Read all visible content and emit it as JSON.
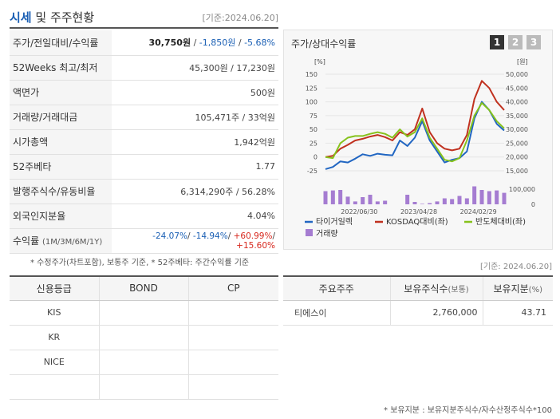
{
  "header": {
    "title_blue": "시세",
    "title_rest": " 및 주주현황",
    "std_time": "[기준:2024.06.20]"
  },
  "info": {
    "row1_label": "주가/전일대비/수익률",
    "price": "30,750원",
    "sep1": " / ",
    "change": "-1,850원",
    "sep2": " / ",
    "rate": "-5.68%",
    "row2_label": "52Weeks 최고/최저",
    "row2_value": "45,300원 / 17,230원",
    "row3_label": "액면가",
    "row3_value": "500원",
    "row4_label": "거래량/거래대금",
    "row4_value": "105,471주 / 33억원",
    "row5_label": "시가총액",
    "row5_value": "1,942억원",
    "row6_label": "52주베타",
    "row6_value": "1.77",
    "row7_label": "발행주식수/유동비율",
    "row7_value": "6,314,290주 / 56.28%",
    "row8_label": "외국인지분율",
    "row8_value": "4.04%",
    "row9_label": "수익률",
    "row9_period": "(1M/3M/6M/1Y)",
    "r1m": "-24.07%",
    "r3m": "-14.94%",
    "r6m": "+60.99%",
    "r1y": "+15.60%",
    "slash": "/ "
  },
  "footnote1": "* 수정주가(차트포함), 보통주 기준, * 52주베타: 주간수익률 기준",
  "chart_panel": {
    "title": "주가/상대수익률",
    "tabs": [
      "1",
      "2",
      "3"
    ],
    "active_tab": "1"
  },
  "chart_data": {
    "type": "line",
    "left_unit": "[%]",
    "right_unit": "[원]",
    "left_ticks": [
      "150",
      "125",
      "100",
      "75",
      "50",
      "25",
      "0",
      "-25"
    ],
    "right_ticks": [
      "50,000",
      "45,000",
      "40,000",
      "35,000",
      "30,000",
      "25,000",
      "20,000",
      "15,000"
    ],
    "volume_ticks": [
      "100,000",
      "0"
    ],
    "x_labels": [
      "2022/06/30",
      "2023/04/28",
      "2024/02/29"
    ],
    "ylim_left": [
      -25,
      150
    ],
    "series": [
      {
        "name": "타이거일렉",
        "color": "#2166c2",
        "values": [
          -22,
          -18,
          -8,
          -10,
          -3,
          5,
          2,
          6,
          4,
          3,
          30,
          20,
          35,
          65,
          30,
          10,
          -10,
          -5,
          -2,
          10,
          70,
          100,
          85,
          60,
          48
        ]
      },
      {
        "name": "KOSDAQ대비(좌)",
        "color": "#c0311f",
        "values": [
          0,
          2,
          15,
          22,
          30,
          33,
          37,
          40,
          36,
          30,
          45,
          40,
          50,
          88,
          45,
          25,
          15,
          12,
          15,
          40,
          105,
          138,
          125,
          100,
          85
        ]
      },
      {
        "name": "반도체대비(좌)",
        "color": "#86c21c",
        "values": [
          0,
          -2,
          25,
          35,
          38,
          38,
          42,
          45,
          42,
          35,
          50,
          37,
          45,
          70,
          35,
          15,
          -5,
          -8,
          -2,
          30,
          75,
          98,
          85,
          65,
          52
        ]
      }
    ],
    "volume_name": "거래량",
    "volume_color": "#a57cd1",
    "volume_values": [
      55000,
      58000,
      60000,
      32000,
      12000,
      30000,
      40000,
      12000,
      15000,
      0,
      0,
      40000,
      10000,
      2000,
      5000,
      12000,
      25000,
      22000,
      35000,
      25000,
      75000,
      60000,
      55000,
      58000,
      48000
    ]
  },
  "std_time2": "[기준: 2024.06.20]",
  "credit": {
    "headers": [
      "신용등급",
      "BOND",
      "CP"
    ],
    "rows": [
      [
        "KIS",
        "",
        ""
      ],
      [
        "KR",
        "",
        ""
      ],
      [
        "NICE",
        "",
        ""
      ],
      [
        "",
        "",
        ""
      ]
    ]
  },
  "holders": {
    "h1": "주요주주",
    "h2": "보유주식수",
    "h2_unit": "(보통)",
    "h3": "보유지분",
    "h3_unit": "(%)",
    "rows": [
      [
        "티에스이",
        "2,760,000",
        "43.71"
      ]
    ]
  },
  "footnote2": "* 보유지분 : 보유지분주식수/자수산정주식수*100"
}
